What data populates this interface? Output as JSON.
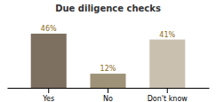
{
  "chart_data": {
    "type": "bar",
    "title": "Due diligence checks",
    "categories": [
      "Yes",
      "No",
      "Don't know"
    ],
    "values": [
      46,
      12,
      41
    ],
    "value_labels": [
      "46%",
      "12%",
      "41%"
    ],
    "colors": [
      "#7d7060",
      "#9e9278",
      "#c9c0b0"
    ],
    "ylim": [
      0,
      58
    ],
    "data_labels": true,
    "tick_labels": "x"
  }
}
